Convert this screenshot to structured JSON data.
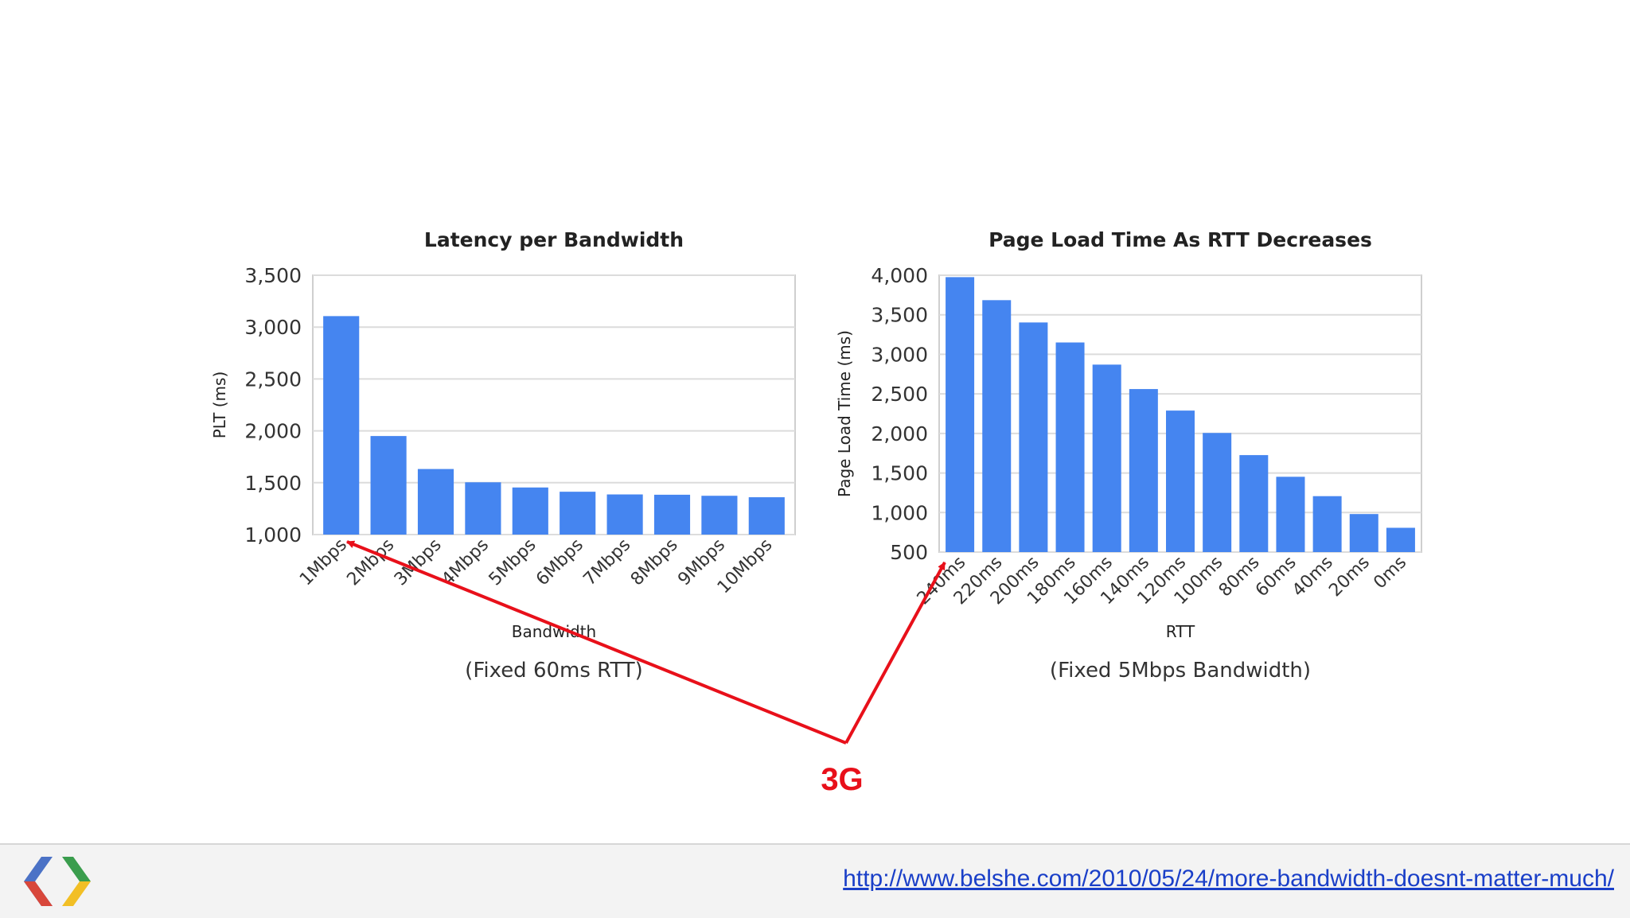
{
  "chart_data": [
    {
      "type": "bar",
      "title": "Latency per Bandwidth",
      "xlabel": "Bandwidth",
      "ylabel": "PLT (ms)",
      "caption": "(Fixed 60ms RTT)",
      "categories": [
        "1Mbps",
        "2Mbps",
        "3Mbps",
        "4Mbps",
        "5Mbps",
        "6Mbps",
        "7Mbps",
        "8Mbps",
        "9Mbps",
        "10Mbps"
      ],
      "values": [
        3106,
        1950,
        1632,
        1504,
        1454,
        1413,
        1387,
        1384,
        1374,
        1360
      ],
      "ylim": [
        1000,
        3500
      ],
      "yticks": [
        1000,
        1500,
        2000,
        2500,
        3000,
        3500
      ],
      "ytick_labels": [
        "1,000",
        "1,500",
        "2,000",
        "2,500",
        "3,000",
        "3,500"
      ],
      "grid": true,
      "bar_color": "#4585f0"
    },
    {
      "type": "bar",
      "title": "Page Load Time As RTT Decreases",
      "xlabel": "RTT",
      "ylabel": "Page Load Time (ms)",
      "caption": "(Fixed 5Mbps Bandwidth)",
      "categories": [
        "240ms",
        "220ms",
        "200ms",
        "180ms",
        "160ms",
        "140ms",
        "120ms",
        "100ms",
        "80ms",
        "60ms",
        "40ms",
        "20ms",
        "0ms"
      ],
      "values": [
        3976,
        3685,
        3403,
        3150,
        2870,
        2561,
        2289,
        2006,
        1726,
        1452,
        1207,
        981,
        807
      ],
      "ylim": [
        500,
        4000
      ],
      "yticks": [
        500,
        1000,
        1500,
        2000,
        2500,
        3000,
        3500,
        4000
      ],
      "ytick_labels": [
        "500",
        "1,000",
        "1,500",
        "2,000",
        "2,500",
        "3,000",
        "3,500",
        "4,000"
      ],
      "grid": true,
      "bar_color": "#4585f0"
    }
  ],
  "annotation": {
    "label": "3G",
    "color": "#e8101a"
  },
  "footer": {
    "link_text": "http://www.belshe.com/2010/05/24/more-bandwidth-doesnt-matter-much/",
    "logo_icon": "google-chrome-developers-logo"
  }
}
